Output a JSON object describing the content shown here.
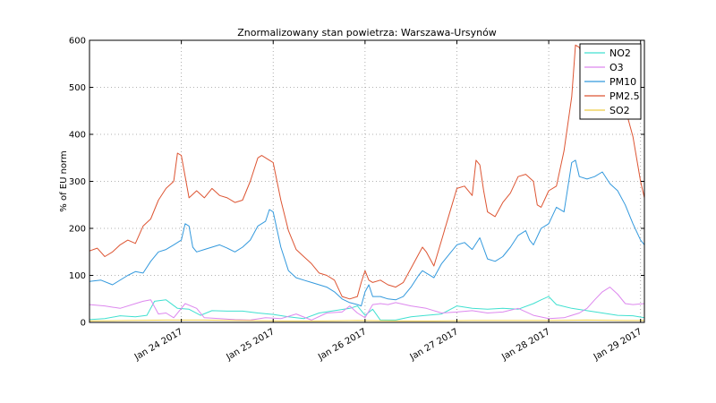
{
  "chart_data": {
    "type": "line",
    "title": "Znormalizowany stan powietrza: Warszawa-Ursynów",
    "xlabel": "",
    "ylabel": "% of EU norm",
    "ylim": [
      0,
      600
    ],
    "yticks": [
      0,
      100,
      200,
      300,
      400,
      500,
      600
    ],
    "xlim": [
      0,
      145
    ],
    "x_unit": "hours since Jan 23 2017 00:00",
    "xticks": [
      {
        "label": "Jan 24 2017",
        "x": 24
      },
      {
        "label": "Jan 25 2017",
        "x": 48
      },
      {
        "label": "Jan 26 2017",
        "x": 72
      },
      {
        "label": "Jan 27 2017",
        "x": 96
      },
      {
        "label": "Jan 28 2017",
        "x": 120
      },
      {
        "label": "Jan 29 2017",
        "x": 144
      }
    ],
    "grid": true,
    "legend_position": "top-right",
    "series": [
      {
        "name": "NO2",
        "color": "#40e0d0",
        "points": [
          [
            0,
            6
          ],
          [
            4,
            8
          ],
          [
            8,
            14
          ],
          [
            12,
            12
          ],
          [
            15,
            15
          ],
          [
            17,
            45
          ],
          [
            20,
            48
          ],
          [
            23,
            30
          ],
          [
            26,
            28
          ],
          [
            29,
            15
          ],
          [
            32,
            25
          ],
          [
            36,
            24
          ],
          [
            40,
            24
          ],
          [
            44,
            20
          ],
          [
            48,
            17
          ],
          [
            52,
            12
          ],
          [
            56,
            8
          ],
          [
            60,
            20
          ],
          [
            64,
            25
          ],
          [
            68,
            30
          ],
          [
            70,
            35
          ],
          [
            72,
            15
          ],
          [
            74,
            28
          ],
          [
            76,
            5
          ],
          [
            80,
            5
          ],
          [
            84,
            12
          ],
          [
            88,
            15
          ],
          [
            92,
            18
          ],
          [
            96,
            35
          ],
          [
            100,
            30
          ],
          [
            104,
            28
          ],
          [
            108,
            30
          ],
          [
            112,
            28
          ],
          [
            116,
            40
          ],
          [
            118,
            48
          ],
          [
            120,
            55
          ],
          [
            122,
            38
          ],
          [
            126,
            30
          ],
          [
            130,
            25
          ],
          [
            134,
            20
          ],
          [
            138,
            15
          ],
          [
            142,
            14
          ],
          [
            145,
            10
          ]
        ]
      },
      {
        "name": "O3",
        "color": "#dd88ee",
        "points": [
          [
            0,
            38
          ],
          [
            4,
            35
          ],
          [
            8,
            30
          ],
          [
            12,
            40
          ],
          [
            14,
            45
          ],
          [
            16,
            48
          ],
          [
            18,
            18
          ],
          [
            20,
            20
          ],
          [
            22,
            10
          ],
          [
            25,
            40
          ],
          [
            28,
            30
          ],
          [
            30,
            10
          ],
          [
            34,
            8
          ],
          [
            38,
            6
          ],
          [
            42,
            5
          ],
          [
            46,
            10
          ],
          [
            50,
            8
          ],
          [
            54,
            18
          ],
          [
            58,
            5
          ],
          [
            62,
            20
          ],
          [
            66,
            22
          ],
          [
            68,
            35
          ],
          [
            70,
            20
          ],
          [
            72,
            10
          ],
          [
            74,
            38
          ],
          [
            76,
            40
          ],
          [
            78,
            38
          ],
          [
            80,
            42
          ],
          [
            84,
            35
          ],
          [
            88,
            30
          ],
          [
            92,
            20
          ],
          [
            96,
            22
          ],
          [
            100,
            25
          ],
          [
            104,
            20
          ],
          [
            108,
            22
          ],
          [
            112,
            30
          ],
          [
            116,
            15
          ],
          [
            120,
            8
          ],
          [
            124,
            10
          ],
          [
            128,
            20
          ],
          [
            130,
            30
          ],
          [
            132,
            48
          ],
          [
            134,
            65
          ],
          [
            136,
            75
          ],
          [
            138,
            60
          ],
          [
            140,
            40
          ],
          [
            142,
            38
          ],
          [
            145,
            40
          ]
        ]
      },
      {
        "name": "PM10",
        "color": "#3399dd",
        "points": [
          [
            0,
            87
          ],
          [
            3,
            90
          ],
          [
            6,
            80
          ],
          [
            10,
            100
          ],
          [
            12,
            108
          ],
          [
            14,
            105
          ],
          [
            16,
            130
          ],
          [
            18,
            150
          ],
          [
            20,
            155
          ],
          [
            22,
            165
          ],
          [
            24,
            175
          ],
          [
            25,
            210
          ],
          [
            26,
            205
          ],
          [
            27,
            160
          ],
          [
            28,
            150
          ],
          [
            30,
            155
          ],
          [
            32,
            160
          ],
          [
            34,
            165
          ],
          [
            36,
            158
          ],
          [
            38,
            150
          ],
          [
            40,
            160
          ],
          [
            42,
            175
          ],
          [
            44,
            205
          ],
          [
            46,
            215
          ],
          [
            47,
            240
          ],
          [
            48,
            235
          ],
          [
            50,
            160
          ],
          [
            52,
            110
          ],
          [
            54,
            95
          ],
          [
            56,
            90
          ],
          [
            58,
            85
          ],
          [
            60,
            80
          ],
          [
            62,
            75
          ],
          [
            64,
            65
          ],
          [
            66,
            50
          ],
          [
            68,
            42
          ],
          [
            70,
            38
          ],
          [
            71,
            35
          ],
          [
            72,
            65
          ],
          [
            73,
            80
          ],
          [
            74,
            55
          ],
          [
            76,
            55
          ],
          [
            78,
            50
          ],
          [
            80,
            48
          ],
          [
            82,
            55
          ],
          [
            84,
            75
          ],
          [
            86,
            100
          ],
          [
            87,
            110
          ],
          [
            88,
            105
          ],
          [
            90,
            95
          ],
          [
            92,
            125
          ],
          [
            94,
            145
          ],
          [
            96,
            165
          ],
          [
            98,
            170
          ],
          [
            100,
            155
          ],
          [
            102,
            180
          ],
          [
            104,
            135
          ],
          [
            106,
            130
          ],
          [
            108,
            140
          ],
          [
            110,
            160
          ],
          [
            112,
            185
          ],
          [
            114,
            195
          ],
          [
            115,
            175
          ],
          [
            116,
            165
          ],
          [
            118,
            200
          ],
          [
            120,
            210
          ],
          [
            122,
            245
          ],
          [
            124,
            235
          ],
          [
            126,
            340
          ],
          [
            127,
            345
          ],
          [
            128,
            310
          ],
          [
            130,
            305
          ],
          [
            132,
            310
          ],
          [
            134,
            320
          ],
          [
            136,
            295
          ],
          [
            138,
            280
          ],
          [
            140,
            250
          ],
          [
            142,
            210
          ],
          [
            144,
            175
          ],
          [
            145,
            165
          ]
        ]
      },
      {
        "name": "PM2.5",
        "color": "#dd5533",
        "points": [
          [
            0,
            152
          ],
          [
            2,
            158
          ],
          [
            4,
            140
          ],
          [
            6,
            150
          ],
          [
            8,
            165
          ],
          [
            10,
            175
          ],
          [
            12,
            168
          ],
          [
            14,
            205
          ],
          [
            16,
            220
          ],
          [
            18,
            260
          ],
          [
            20,
            285
          ],
          [
            22,
            300
          ],
          [
            23,
            360
          ],
          [
            24,
            355
          ],
          [
            26,
            265
          ],
          [
            28,
            280
          ],
          [
            30,
            265
          ],
          [
            32,
            285
          ],
          [
            34,
            270
          ],
          [
            36,
            265
          ],
          [
            38,
            255
          ],
          [
            40,
            260
          ],
          [
            42,
            300
          ],
          [
            44,
            350
          ],
          [
            45,
            355
          ],
          [
            47,
            345
          ],
          [
            48,
            340
          ],
          [
            50,
            260
          ],
          [
            52,
            195
          ],
          [
            54,
            155
          ],
          [
            56,
            140
          ],
          [
            58,
            125
          ],
          [
            60,
            105
          ],
          [
            62,
            100
          ],
          [
            64,
            90
          ],
          [
            66,
            55
          ],
          [
            68,
            50
          ],
          [
            70,
            55
          ],
          [
            71,
            85
          ],
          [
            72,
            110
          ],
          [
            73,
            90
          ],
          [
            74,
            85
          ],
          [
            76,
            90
          ],
          [
            78,
            80
          ],
          [
            80,
            75
          ],
          [
            82,
            85
          ],
          [
            84,
            115
          ],
          [
            86,
            145
          ],
          [
            87,
            160
          ],
          [
            88,
            150
          ],
          [
            90,
            120
          ],
          [
            92,
            175
          ],
          [
            94,
            230
          ],
          [
            96,
            285
          ],
          [
            98,
            290
          ],
          [
            100,
            270
          ],
          [
            101,
            345
          ],
          [
            102,
            335
          ],
          [
            103,
            280
          ],
          [
            104,
            235
          ],
          [
            106,
            225
          ],
          [
            108,
            255
          ],
          [
            110,
            275
          ],
          [
            112,
            310
          ],
          [
            114,
            315
          ],
          [
            116,
            300
          ],
          [
            117,
            250
          ],
          [
            118,
            245
          ],
          [
            120,
            280
          ],
          [
            122,
            290
          ],
          [
            124,
            365
          ],
          [
            126,
            480
          ],
          [
            127,
            590
          ],
          [
            128,
            585
          ],
          [
            130,
            525
          ],
          [
            132,
            520
          ],
          [
            134,
            540
          ],
          [
            136,
            550
          ],
          [
            138,
            490
          ],
          [
            140,
            455
          ],
          [
            142,
            395
          ],
          [
            144,
            300
          ],
          [
            145,
            265
          ]
        ]
      },
      {
        "name": "SO2",
        "color": "#eecc44",
        "points": [
          [
            0,
            3
          ],
          [
            10,
            4
          ],
          [
            20,
            5
          ],
          [
            30,
            5
          ],
          [
            40,
            4
          ],
          [
            50,
            3
          ],
          [
            60,
            3
          ],
          [
            70,
            4
          ],
          [
            80,
            3
          ],
          [
            90,
            3
          ],
          [
            100,
            4
          ],
          [
            110,
            4
          ],
          [
            120,
            4
          ],
          [
            130,
            5
          ],
          [
            140,
            4
          ],
          [
            145,
            4
          ]
        ]
      }
    ]
  }
}
